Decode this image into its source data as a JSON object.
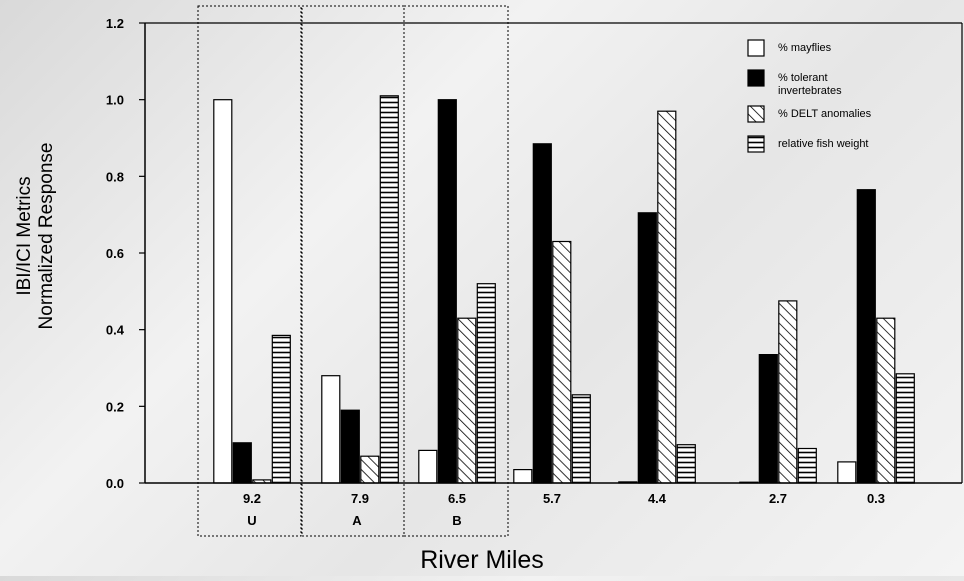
{
  "chart_data": {
    "type": "bar",
    "ylabel": [
      "IBI/ICI Metrics",
      "Normalized Response"
    ],
    "xlabel": "River Miles",
    "ylim": [
      0,
      1.2
    ],
    "yticks": [
      "0.0",
      "0.2",
      "0.4",
      "0.6",
      "0.8",
      "1.0",
      "1.2"
    ],
    "categories": [
      "9.2",
      "7.9",
      "6.5",
      "5.7",
      "4.4",
      "2.7",
      "0.3"
    ],
    "sublabels": [
      "U",
      "A",
      "B",
      "",
      "",
      "",
      ""
    ],
    "highlight_boxes": [
      "9.2",
      "7.9",
      "6.5"
    ],
    "legend_position": "top-right",
    "series": [
      {
        "name": "% mayflies",
        "pattern": "white",
        "values": [
          1.0,
          0.28,
          0.085,
          0.035,
          0.003,
          0.002,
          0.055
        ]
      },
      {
        "name": "% tolerant invertebrates",
        "pattern": "black",
        "values": [
          0.105,
          0.19,
          1.0,
          0.885,
          0.705,
          0.335,
          0.765
        ]
      },
      {
        "name": "% DELT anomalies",
        "pattern": "diagonal",
        "values": [
          0.008,
          0.07,
          0.43,
          0.63,
          0.97,
          0.475,
          0.43
        ]
      },
      {
        "name": "relative fish weight",
        "pattern": "horizontal",
        "values": [
          0.385,
          1.01,
          0.52,
          0.23,
          0.1,
          0.09,
          0.285
        ]
      }
    ],
    "legend": [
      {
        "lines": [
          "% mayflies"
        ]
      },
      {
        "lines": [
          "% tolerant",
          "invertebrates"
        ]
      },
      {
        "lines": [
          "% DELT anomalies"
        ]
      },
      {
        "lines": [
          "relative fish weight"
        ]
      }
    ]
  }
}
